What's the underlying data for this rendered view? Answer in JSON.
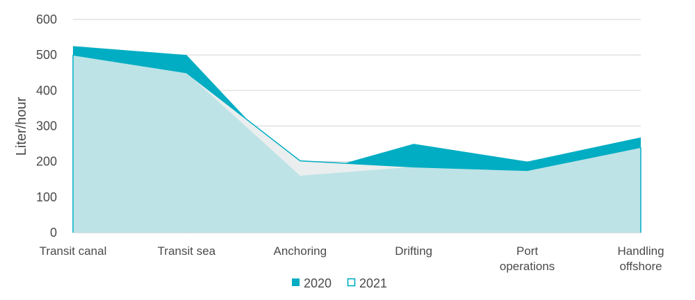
{
  "chart_data": {
    "type": "area",
    "ylabel": "Liter/hour",
    "ylim": [
      0,
      600
    ],
    "yticks": [
      0,
      100,
      200,
      300,
      400,
      500,
      600
    ],
    "grid": true,
    "legend_position": "bottom-center",
    "categories": [
      [
        "Transit canal"
      ],
      [
        "Transit sea"
      ],
      [
        "Anchoring"
      ],
      [
        "Drifting"
      ],
      [
        "Port",
        "operations"
      ],
      [
        "Handling",
        "offshore"
      ]
    ],
    "series": [
      {
        "name": "2020",
        "values": [
          525,
          500,
          160,
          250,
          200,
          268
        ],
        "color": "#00adc3",
        "style": "filled"
      },
      {
        "name": "2021",
        "values": [
          500,
          450,
          202,
          185,
          175,
          240
        ],
        "color": "#00adc3",
        "fill": "#bde3e6",
        "style": "outline"
      }
    ],
    "colors": {
      "grid": "#d9d9d9",
      "anchoring_gap": "#eeeeee",
      "text": "#4a4a4a"
    }
  }
}
